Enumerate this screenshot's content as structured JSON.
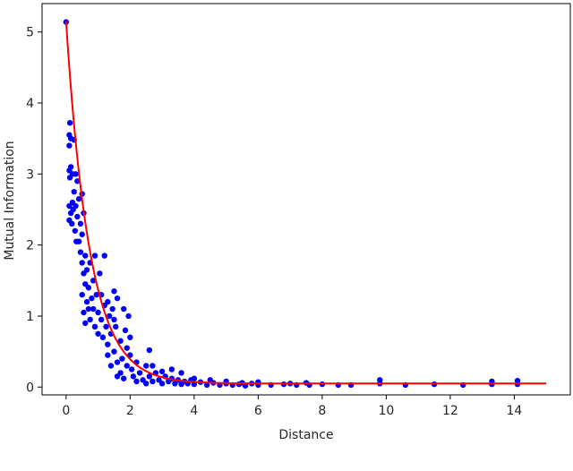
{
  "chart_data": {
    "type": "scatter",
    "xlabel": "Distance",
    "ylabel": "Mutual Information",
    "xlim": [
      -0.75,
      15.75
    ],
    "ylim": [
      -0.11,
      5.4
    ],
    "x_ticks": [
      0,
      2,
      4,
      6,
      8,
      10,
      12,
      14
    ],
    "y_ticks": [
      0,
      1,
      2,
      3,
      4,
      5
    ],
    "grid": false,
    "legend": "none",
    "colors": {
      "points": "#0000ff",
      "fit": "#ff0000",
      "axes": "#000000"
    },
    "series": [
      {
        "kind": "scatter",
        "points": [
          [
            0.0,
            5.14
          ],
          [
            0.1,
            3.55
          ],
          [
            0.12,
            3.72
          ],
          [
            0.1,
            3.4
          ],
          [
            0.15,
            3.5
          ],
          [
            0.1,
            3.05
          ],
          [
            0.12,
            2.95
          ],
          [
            0.15,
            3.1
          ],
          [
            0.2,
            3.0
          ],
          [
            0.1,
            2.55
          ],
          [
            0.15,
            2.45
          ],
          [
            0.2,
            2.6
          ],
          [
            0.1,
            2.35
          ],
          [
            0.18,
            2.3
          ],
          [
            0.22,
            2.5
          ],
          [
            0.25,
            3.48
          ],
          [
            0.3,
            3.0
          ],
          [
            0.25,
            2.75
          ],
          [
            0.3,
            2.55
          ],
          [
            0.35,
            2.9
          ],
          [
            0.28,
            2.2
          ],
          [
            0.32,
            2.05
          ],
          [
            0.35,
            2.4
          ],
          [
            0.4,
            2.65
          ],
          [
            0.45,
            2.3
          ],
          [
            0.4,
            2.05
          ],
          [
            0.45,
            1.9
          ],
          [
            0.5,
            2.72
          ],
          [
            0.5,
            2.15
          ],
          [
            0.55,
            2.45
          ],
          [
            0.5,
            1.75
          ],
          [
            0.55,
            1.6
          ],
          [
            0.6,
            1.85
          ],
          [
            0.6,
            1.45
          ],
          [
            0.65,
            1.2
          ],
          [
            0.5,
            1.3
          ],
          [
            0.55,
            1.05
          ],
          [
            0.6,
            0.9
          ],
          [
            0.65,
            1.65
          ],
          [
            0.7,
            1.4
          ],
          [
            0.75,
            1.75
          ],
          [
            0.7,
            1.1
          ],
          [
            0.75,
            0.95
          ],
          [
            0.8,
            1.25
          ],
          [
            0.85,
            1.5
          ],
          [
            0.9,
            1.85
          ],
          [
            0.85,
            1.1
          ],
          [
            0.9,
            0.85
          ],
          [
            0.95,
            1.3
          ],
          [
            1.0,
            1.05
          ],
          [
            1.0,
            0.75
          ],
          [
            1.05,
            1.6
          ],
          [
            1.1,
            1.3
          ],
          [
            1.1,
            0.95
          ],
          [
            1.15,
            0.7
          ],
          [
            1.2,
            1.85
          ],
          [
            1.2,
            1.15
          ],
          [
            1.25,
            0.85
          ],
          [
            1.3,
            0.6
          ],
          [
            1.35,
            1.0
          ],
          [
            1.4,
            0.75
          ],
          [
            1.45,
            1.1
          ],
          [
            1.5,
            0.5
          ],
          [
            1.55,
            0.85
          ],
          [
            1.6,
            1.25
          ],
          [
            1.7,
            0.65
          ],
          [
            1.75,
            0.4
          ],
          [
            1.8,
            1.1
          ],
          [
            1.85,
            0.8
          ],
          [
            1.9,
            0.55
          ],
          [
            1.95,
            1.0
          ],
          [
            2.0,
            0.7
          ],
          [
            1.3,
            0.45
          ],
          [
            1.4,
            0.3
          ],
          [
            1.6,
            0.35
          ],
          [
            1.7,
            0.2
          ],
          [
            1.9,
            0.3
          ],
          [
            2.0,
            0.45
          ],
          [
            2.05,
            0.25
          ],
          [
            2.1,
            0.15
          ],
          [
            2.2,
            0.35
          ],
          [
            2.3,
            0.2
          ],
          [
            2.4,
            0.1
          ],
          [
            2.5,
            0.3
          ],
          [
            2.6,
            0.15
          ],
          [
            2.7,
            0.08
          ],
          [
            2.8,
            0.2
          ],
          [
            2.9,
            0.1
          ],
          [
            3.0,
            0.05
          ],
          [
            3.1,
            0.15
          ],
          [
            3.2,
            0.08
          ],
          [
            3.3,
            0.12
          ],
          [
            3.4,
            0.05
          ],
          [
            3.5,
            0.1
          ],
          [
            3.6,
            0.04
          ],
          [
            3.7,
            0.08
          ],
          [
            3.8,
            0.05
          ],
          [
            3.9,
            0.1
          ],
          [
            4.0,
            0.04
          ],
          [
            4.2,
            0.07
          ],
          [
            4.4,
            0.03
          ],
          [
            4.6,
            0.06
          ],
          [
            4.8,
            0.03
          ],
          [
            5.0,
            0.05
          ],
          [
            5.2,
            0.03
          ],
          [
            5.4,
            0.04
          ],
          [
            5.6,
            0.02
          ],
          [
            5.8,
            0.05
          ],
          [
            6.0,
            0.03
          ],
          [
            6.0,
            0.07
          ],
          [
            6.4,
            0.03
          ],
          [
            6.8,
            0.04
          ],
          [
            7.2,
            0.03
          ],
          [
            7.6,
            0.03
          ],
          [
            8.0,
            0.04
          ],
          [
            8.9,
            0.03
          ],
          [
            9.8,
            0.05
          ],
          [
            9.8,
            0.1
          ],
          [
            10.6,
            0.03
          ],
          [
            11.5,
            0.04
          ],
          [
            12.4,
            0.03
          ],
          [
            13.3,
            0.04
          ],
          [
            13.3,
            0.08
          ],
          [
            14.1,
            0.04
          ],
          [
            14.1,
            0.09
          ],
          [
            2.6,
            0.52
          ],
          [
            1.3,
            1.2
          ],
          [
            1.5,
            1.35
          ],
          [
            1.5,
            0.95
          ],
          [
            1.6,
            0.15
          ],
          [
            1.8,
            0.12
          ],
          [
            2.2,
            0.08
          ],
          [
            2.5,
            0.05
          ],
          [
            2.7,
            0.3
          ],
          [
            3.0,
            0.22
          ],
          [
            3.3,
            0.25
          ],
          [
            3.6,
            0.2
          ],
          [
            4.0,
            0.12
          ],
          [
            4.5,
            0.1
          ],
          [
            5.0,
            0.08
          ],
          [
            5.5,
            0.06
          ],
          [
            7.0,
            0.05
          ],
          [
            7.5,
            0.06
          ],
          [
            8.5,
            0.03
          ]
        ]
      },
      {
        "kind": "line",
        "model": "y = 5.1 * exp(-1.35 * x) + 0.05",
        "x_range": [
          0,
          15
        ]
      }
    ]
  }
}
